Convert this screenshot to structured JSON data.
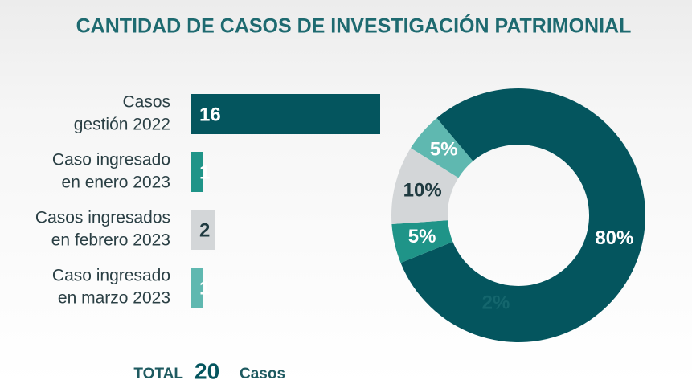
{
  "title": "CANTIDAD DE CASOS DE INVESTIGACIÓN PATRIMONIAL",
  "chart_data": [
    {
      "type": "barh",
      "categories": [
        [
          "Casos",
          "gestión 2022"
        ],
        [
          "Caso ingresado",
          "en enero 2023"
        ],
        [
          "Casos ingresados",
          "en febrero 2023"
        ],
        [
          "Caso ingresado",
          "en marzo 2023"
        ]
      ],
      "values": [
        16,
        1,
        2,
        1
      ],
      "colors": [
        "#04555e",
        "#1f9488",
        "#d3d6d8",
        "#5fb8b0"
      ],
      "label_colors": [
        "#ffffff",
        "#ffffff",
        "#1f3a40",
        "#ffffff"
      ],
      "xlim": [
        0,
        16
      ]
    },
    {
      "type": "donut",
      "values": [
        80,
        5,
        10,
        5
      ],
      "value_labels": [
        "80%",
        "5%",
        "10%",
        "5%"
      ],
      "colors": [
        "#04555e",
        "#1f9488",
        "#d3d6d8",
        "#5fb8b0"
      ],
      "label_colors": [
        "#ffffff",
        "#ffffff",
        "#1f3a40",
        "#ffffff"
      ],
      "annotation": "2%"
    }
  ],
  "total": {
    "label": "TOTAL",
    "value": "20",
    "unit": "Casos"
  }
}
